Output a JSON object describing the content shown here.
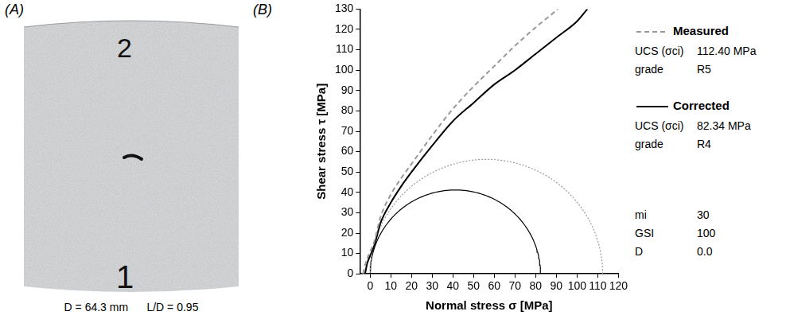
{
  "panel_a": {
    "label": "(A)",
    "marks": [
      "2",
      "1"
    ],
    "caption": [
      "D = 64.3 mm",
      "L/D = 0.95"
    ]
  },
  "panel_b_label": "(B)",
  "chart_data": {
    "type": "line",
    "x_label": "Normal stress σ [MPa]",
    "y_label": "Shear stress τ [MPa]",
    "xlim": [
      -5,
      120
    ],
    "xticks": [
      0,
      10,
      20,
      30,
      40,
      50,
      60,
      70,
      80,
      90,
      100,
      110,
      120
    ],
    "ylim": [
      0,
      130
    ],
    "yticks": [
      0,
      10,
      20,
      30,
      40,
      50,
      60,
      70,
      80,
      90,
      100,
      110,
      120,
      130
    ],
    "grid": false,
    "series": [
      {
        "name": "Measured",
        "color": "#999999",
        "line_style": "dashed",
        "x": [
          -3.5,
          -2,
          0,
          2,
          5,
          10,
          15,
          20,
          30,
          40,
          50,
          60,
          70,
          80,
          90.8
        ],
        "values": [
          0,
          6,
          11,
          16,
          28,
          39,
          47,
          54,
          68,
          81,
          92,
          102,
          112,
          121,
          130
        ]
      },
      {
        "name": "Corrected",
        "color": "#000000",
        "line_style": "solid",
        "x": [
          -2.5,
          -1.5,
          0,
          2,
          5,
          10,
          15,
          20,
          30,
          40,
          50,
          60,
          70,
          80,
          90,
          100,
          105
        ],
        "values": [
          0,
          5,
          9,
          14,
          25,
          35,
          43,
          50,
          63,
          75,
          84,
          93,
          100,
          108,
          116,
          124,
          130
        ]
      }
    ],
    "mohr_circles": [
      {
        "name": "Measured",
        "color": "#999999",
        "line_style": "dotted",
        "sigma3": 0,
        "sigma1": 112.4
      },
      {
        "name": "Corrected",
        "color": "#000000",
        "line_style": "solid",
        "sigma3": 0,
        "sigma1": 82.34
      }
    ]
  },
  "side_legend": {
    "entries": [
      [
        {
          "label": "UCS (σci)",
          "value": "112.40 MPa"
        },
        {
          "label": "grade",
          "value": "R5"
        }
      ],
      [
        {
          "label": "UCS (σci)",
          "value": "82.34 MPa"
        },
        {
          "label": "grade",
          "value": "R4"
        }
      ]
    ],
    "parameters": [
      {
        "label": "mi",
        "value": "30"
      },
      {
        "label": "GSI",
        "value": "100"
      },
      {
        "label": "D",
        "value": "0.0"
      }
    ]
  }
}
